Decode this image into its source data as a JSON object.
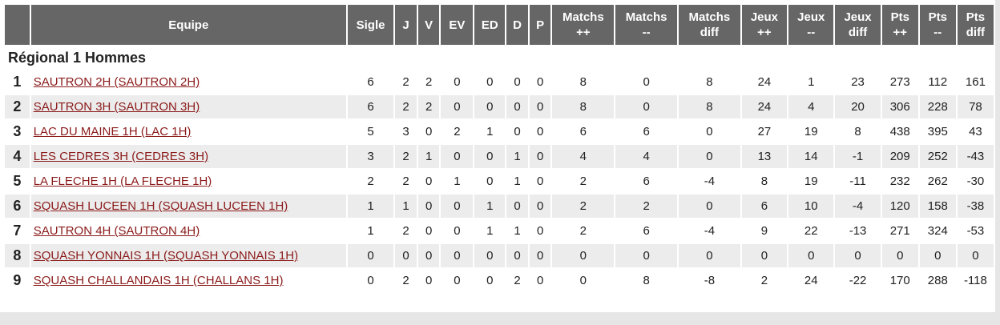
{
  "headers": [
    [
      "",
      ""
    ],
    [
      "Equipe",
      ""
    ],
    [
      "Sigle",
      ""
    ],
    [
      "J",
      ""
    ],
    [
      "V",
      ""
    ],
    [
      "EV",
      ""
    ],
    [
      "ED",
      ""
    ],
    [
      "D",
      ""
    ],
    [
      "P",
      ""
    ],
    [
      "Matchs",
      "++"
    ],
    [
      "Matchs",
      "--"
    ],
    [
      "Matchs",
      "diff"
    ],
    [
      "Jeux",
      "++"
    ],
    [
      "Jeux",
      "--"
    ],
    [
      "Jeux",
      "diff"
    ],
    [
      "Pts",
      "++"
    ],
    [
      "Pts",
      "--"
    ],
    [
      "Pts",
      "diff"
    ]
  ],
  "section_title": "Régional 1 Hommes",
  "rows": [
    {
      "rank": "1",
      "team": "SAUTRON 2H (SAUTRON 2H)",
      "vals": [
        "6",
        "2",
        "2",
        "0",
        "0",
        "0",
        "0",
        "8",
        "0",
        "8",
        "24",
        "1",
        "23",
        "273",
        "112",
        "161"
      ]
    },
    {
      "rank": "2",
      "team": "SAUTRON 3H (SAUTRON 3H)",
      "vals": [
        "6",
        "2",
        "2",
        "0",
        "0",
        "0",
        "0",
        "8",
        "0",
        "8",
        "24",
        "4",
        "20",
        "306",
        "228",
        "78"
      ]
    },
    {
      "rank": "3",
      "team": "LAC DU MAINE 1H (LAC 1H)",
      "vals": [
        "5",
        "3",
        "0",
        "2",
        "1",
        "0",
        "0",
        "6",
        "6",
        "0",
        "27",
        "19",
        "8",
        "438",
        "395",
        "43"
      ]
    },
    {
      "rank": "4",
      "team": "LES CEDRES 3H (CEDRES 3H)",
      "vals": [
        "3",
        "2",
        "1",
        "0",
        "0",
        "1",
        "0",
        "4",
        "4",
        "0",
        "13",
        "14",
        "-1",
        "209",
        "252",
        "-43"
      ]
    },
    {
      "rank": "5",
      "team": "LA FLECHE 1H (LA FLECHE 1H)",
      "vals": [
        "2",
        "2",
        "0",
        "1",
        "0",
        "1",
        "0",
        "2",
        "6",
        "-4",
        "8",
        "19",
        "-11",
        "232",
        "262",
        "-30"
      ]
    },
    {
      "rank": "6",
      "team": "SQUASH LUCEEN 1H (SQUASH LUCEEN 1H)",
      "vals": [
        "1",
        "1",
        "0",
        "0",
        "1",
        "0",
        "0",
        "2",
        "2",
        "0",
        "6",
        "10",
        "-4",
        "120",
        "158",
        "-38"
      ]
    },
    {
      "rank": "7",
      "team": "SAUTRON 4H (SAUTRON 4H)",
      "vals": [
        "1",
        "2",
        "0",
        "0",
        "1",
        "1",
        "0",
        "2",
        "6",
        "-4",
        "9",
        "22",
        "-13",
        "271",
        "324",
        "-53"
      ]
    },
    {
      "rank": "8",
      "team": "SQUASH YONNAIS 1H (SQUASH YONNAIS 1H)",
      "vals": [
        "0",
        "0",
        "0",
        "0",
        "0",
        "0",
        "0",
        "0",
        "0",
        "0",
        "0",
        "0",
        "0",
        "0",
        "0",
        "0"
      ]
    },
    {
      "rank": "9",
      "team": "SQUASH CHALLANDAIS 1H (CHALLANS 1H)",
      "vals": [
        "0",
        "2",
        "0",
        "0",
        "0",
        "2",
        "0",
        "0",
        "8",
        "-8",
        "2",
        "24",
        "-22",
        "170",
        "288",
        "-118"
      ]
    }
  ]
}
